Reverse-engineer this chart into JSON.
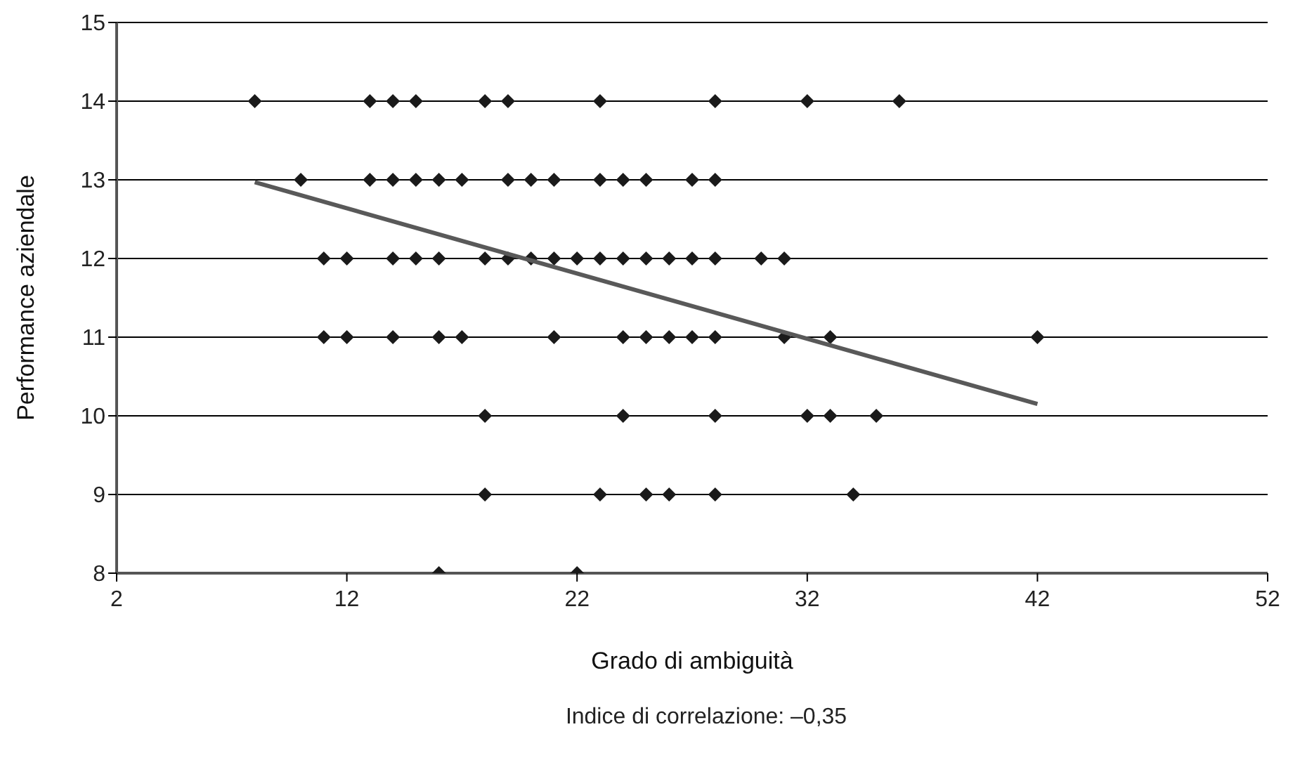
{
  "chart_data": {
    "type": "scatter",
    "xlabel": "Grado di ambiguità",
    "ylabel": "Performance aziendale",
    "annotations": [
      "Indice di correlazione: –0,35"
    ],
    "xlim": [
      2,
      52
    ],
    "xticks": [
      2,
      12,
      22,
      32,
      42,
      52
    ],
    "ylim": [
      8,
      15
    ],
    "yticks": [
      8,
      9,
      10,
      11,
      12,
      13,
      14,
      15
    ],
    "grid": "y",
    "legend": false,
    "marker": "diamond",
    "series": [
      {
        "color": "#1a1a1a",
        "x": [
          8,
          13,
          14,
          15,
          18,
          19,
          23,
          28,
          32,
          36,
          10,
          13,
          14,
          15,
          16,
          17,
          19,
          20,
          21,
          23,
          24,
          25,
          27,
          28,
          11,
          12,
          14,
          15,
          16,
          18,
          19,
          20,
          21,
          22,
          23,
          24,
          25,
          26,
          27,
          28,
          30,
          31,
          11,
          12,
          14,
          16,
          17,
          21,
          24,
          25,
          26,
          27,
          28,
          31,
          33,
          42,
          18,
          24,
          28,
          32,
          33,
          35,
          18,
          23,
          25,
          26,
          28,
          34,
          16,
          22
        ],
        "values": [
          14,
          14,
          14,
          14,
          14,
          14,
          14,
          14,
          14,
          14,
          13,
          13,
          13,
          13,
          13,
          13,
          13,
          13,
          13,
          13,
          13,
          13,
          13,
          13,
          12,
          12,
          12,
          12,
          12,
          12,
          12,
          12,
          12,
          12,
          12,
          12,
          12,
          12,
          12,
          12,
          12,
          12,
          11,
          11,
          11,
          11,
          11,
          11,
          11,
          11,
          11,
          11,
          11,
          11,
          11,
          11,
          10,
          10,
          10,
          10,
          10,
          10,
          9,
          9,
          9,
          9,
          9,
          9,
          8,
          8
        ]
      },
      {
        "type": "line",
        "color": "#595959",
        "marker": "none",
        "line_style": "solid",
        "x": [
          8,
          42
        ],
        "values": [
          12.97,
          10.15
        ]
      }
    ]
  }
}
